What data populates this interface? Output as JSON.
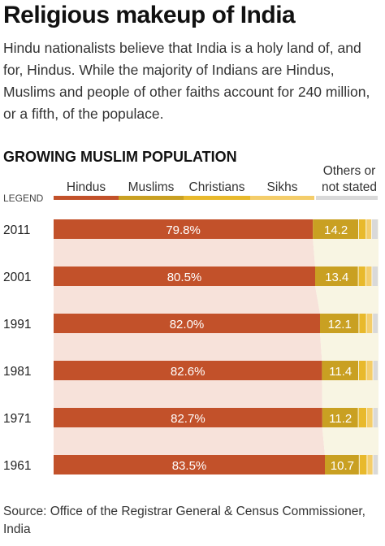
{
  "header": {
    "title": "Religious makeup of India",
    "subtitle": "Hindu nationalists believe that India is a holy land of, and for, Hindus. While the majority of Indians are Hindus, Muslims and people of other faiths account for 240 million, or a fifth, of the populace."
  },
  "section_heading": "GROWING MUSLIM POPULATION",
  "legend": {
    "caption": "LEGEND",
    "items": [
      {
        "label": "Hindus",
        "color": "#c2512a"
      },
      {
        "label": "Muslims",
        "color": "#c9a022"
      },
      {
        "label": "Christians",
        "color": "#e8b92c"
      },
      {
        "label": "Sikhs",
        "color": "#f4cd6a"
      },
      {
        "label": "Others or not stated",
        "color": "#d9d9d9"
      }
    ]
  },
  "chart_data": {
    "type": "bar",
    "orientation": "horizontal-stacked",
    "categories": [
      "2011",
      "2001",
      "1991",
      "1981",
      "1971",
      "1961"
    ],
    "series": [
      {
        "name": "Hindus",
        "values": [
          79.8,
          80.5,
          82.0,
          82.6,
          82.7,
          83.5
        ],
        "color": "#c2512a",
        "value_labels": [
          "79.8%",
          "80.5%",
          "82.0%",
          "82.6%",
          "82.7%",
          "83.5%"
        ]
      },
      {
        "name": "Muslims",
        "values": [
          14.2,
          13.4,
          12.1,
          11.4,
          11.2,
          10.7
        ],
        "color": "#c9a022",
        "value_labels": [
          "14.2",
          "13.4",
          "12.1",
          "11.4",
          "11.2",
          "10.7"
        ]
      },
      {
        "name": "Christians",
        "values": [
          2.3,
          2.3,
          2.3,
          2.4,
          2.6,
          2.4
        ],
        "color": "#e8b92c"
      },
      {
        "name": "Sikhs",
        "values": [
          1.7,
          1.9,
          1.9,
          2.0,
          1.9,
          1.8
        ],
        "color": "#f4cd6a"
      },
      {
        "name": "Others or not stated",
        "values": [
          2.0,
          1.9,
          1.7,
          1.6,
          1.6,
          1.6
        ],
        "color": "#d9d9d9"
      }
    ],
    "xlim": [
      0,
      100
    ],
    "grid": false
  },
  "source": "Source: Office of the Registrar General & Census Commissioner, India"
}
